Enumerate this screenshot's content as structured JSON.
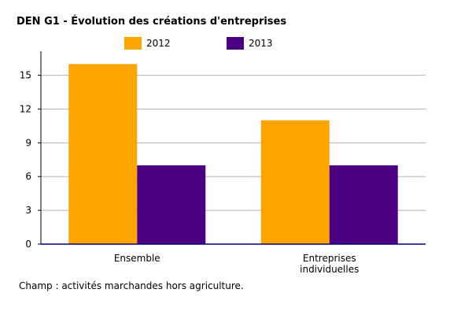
{
  "chart_data": {
    "type": "bar",
    "title": "DEN G1 - Évolution des créations d'entreprises",
    "categories": [
      "Ensemble",
      "Entreprises individuelles"
    ],
    "category_lines": [
      [
        "Ensemble"
      ],
      [
        "Entreprises",
        "individuelles"
      ]
    ],
    "series": [
      {
        "name": "2012",
        "values": [
          16,
          11
        ],
        "color": "#FFA500"
      },
      {
        "name": "2013",
        "values": [
          7,
          7
        ],
        "color": "#4B0082"
      }
    ],
    "y_ticks": [
      0,
      3,
      6,
      9,
      12,
      15
    ],
    "ylim": [
      0,
      17
    ],
    "xlabel": "",
    "ylabel": "",
    "grid": true,
    "legend_position": "top"
  },
  "colors": {
    "gridline": "#b3b3b3",
    "axis": "#000000",
    "baseline": "#000080"
  },
  "note": "Champ : activités marchandes hors agriculture."
}
